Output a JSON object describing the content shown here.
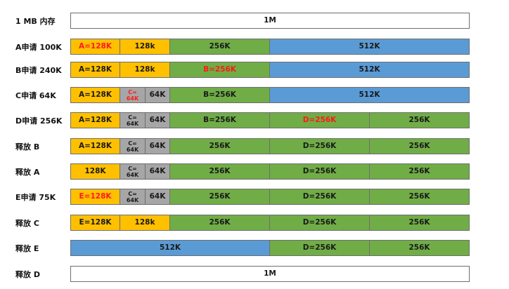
{
  "colors": {
    "allocated": "#ffc000",
    "free_256": "#70ad47",
    "free_512": "#5b9bd5",
    "fragment_64": "#a6a6a6",
    "whole": "#ffffff",
    "highlight_text": "#ff1a1a"
  },
  "rows": [
    {
      "label": "1 MB 内存",
      "segments": [
        {
          "text": "1M",
          "size": 1024,
          "color": "whole"
        }
      ]
    },
    {
      "label": "A申请 100K",
      "segments": [
        {
          "text": "A=128K",
          "size": 128,
          "color": "allocated",
          "highlight": true
        },
        {
          "text": "128k",
          "size": 128,
          "color": "allocated"
        },
        {
          "text": "256K",
          "size": 256,
          "color": "free_256"
        },
        {
          "text": "512K",
          "size": 512,
          "color": "free_512"
        }
      ]
    },
    {
      "label": "B申请 240K",
      "segments": [
        {
          "text": "A=128K",
          "size": 128,
          "color": "allocated"
        },
        {
          "text": "128k",
          "size": 128,
          "color": "allocated"
        },
        {
          "text": "B=256K",
          "size": 256,
          "color": "free_256",
          "highlight": true
        },
        {
          "text": "512K",
          "size": 512,
          "color": "free_512"
        }
      ]
    },
    {
      "label": "C申请 64K",
      "segments": [
        {
          "text": "A=128K",
          "size": 128,
          "color": "allocated"
        },
        {
          "lines": [
            "C=",
            "64K"
          ],
          "size": 64,
          "color": "fragment_64",
          "highlight": true,
          "small": true
        },
        {
          "text": "64K",
          "size": 64,
          "color": "fragment_64"
        },
        {
          "text": "B=256K",
          "size": 256,
          "color": "free_256"
        },
        {
          "text": "512K",
          "size": 512,
          "color": "free_512"
        }
      ]
    },
    {
      "label": "D申请 256K",
      "segments": [
        {
          "text": "A=128K",
          "size": 128,
          "color": "allocated"
        },
        {
          "lines": [
            "C=",
            "64K"
          ],
          "size": 64,
          "color": "fragment_64",
          "small": true
        },
        {
          "text": "64K",
          "size": 64,
          "color": "fragment_64"
        },
        {
          "text": "B=256K",
          "size": 256,
          "color": "free_256"
        },
        {
          "text": "D=256K",
          "size": 256,
          "color": "free_256",
          "highlight": true
        },
        {
          "text": "256K",
          "size": 256,
          "color": "free_256"
        }
      ]
    },
    {
      "label": "释放 B",
      "segments": [
        {
          "text": "A=128K",
          "size": 128,
          "color": "allocated"
        },
        {
          "lines": [
            "C=",
            "64K"
          ],
          "size": 64,
          "color": "fragment_64",
          "small": true
        },
        {
          "text": "64K",
          "size": 64,
          "color": "fragment_64"
        },
        {
          "text": "256K",
          "size": 256,
          "color": "free_256"
        },
        {
          "text": "D=256K",
          "size": 256,
          "color": "free_256"
        },
        {
          "text": "256K",
          "size": 256,
          "color": "free_256"
        }
      ]
    },
    {
      "label": "释放 A",
      "segments": [
        {
          "text": "128K",
          "size": 128,
          "color": "allocated"
        },
        {
          "lines": [
            "C=",
            "64K"
          ],
          "size": 64,
          "color": "fragment_64",
          "small": true
        },
        {
          "text": "64K",
          "size": 64,
          "color": "fragment_64"
        },
        {
          "text": "256K",
          "size": 256,
          "color": "free_256"
        },
        {
          "text": "D=256K",
          "size": 256,
          "color": "free_256"
        },
        {
          "text": "256K",
          "size": 256,
          "color": "free_256"
        }
      ]
    },
    {
      "label": "E申请 75K",
      "segments": [
        {
          "text": "E=128K",
          "size": 128,
          "color": "allocated",
          "highlight": true
        },
        {
          "lines": [
            "C=",
            "64K"
          ],
          "size": 64,
          "color": "fragment_64",
          "small": true
        },
        {
          "text": "64K",
          "size": 64,
          "color": "fragment_64"
        },
        {
          "text": "256K",
          "size": 256,
          "color": "free_256"
        },
        {
          "text": "D=256K",
          "size": 256,
          "color": "free_256"
        },
        {
          "text": "256K",
          "size": 256,
          "color": "free_256"
        }
      ]
    },
    {
      "label": "释放 C",
      "segments": [
        {
          "text": "E=128K",
          "size": 128,
          "color": "allocated"
        },
        {
          "text": "128k",
          "size": 128,
          "color": "allocated"
        },
        {
          "text": "256K",
          "size": 256,
          "color": "free_256"
        },
        {
          "text": "D=256K",
          "size": 256,
          "color": "free_256"
        },
        {
          "text": "256K",
          "size": 256,
          "color": "free_256"
        }
      ]
    },
    {
      "label": "释放 E",
      "segments": [
        {
          "text": "512K",
          "size": 512,
          "color": "free_512"
        },
        {
          "text": "D=256K",
          "size": 256,
          "color": "free_256"
        },
        {
          "text": "256K",
          "size": 256,
          "color": "free_256"
        }
      ]
    },
    {
      "label": "释放 D",
      "segments": [
        {
          "text": "1M",
          "size": 1024,
          "color": "whole"
        }
      ]
    }
  ]
}
